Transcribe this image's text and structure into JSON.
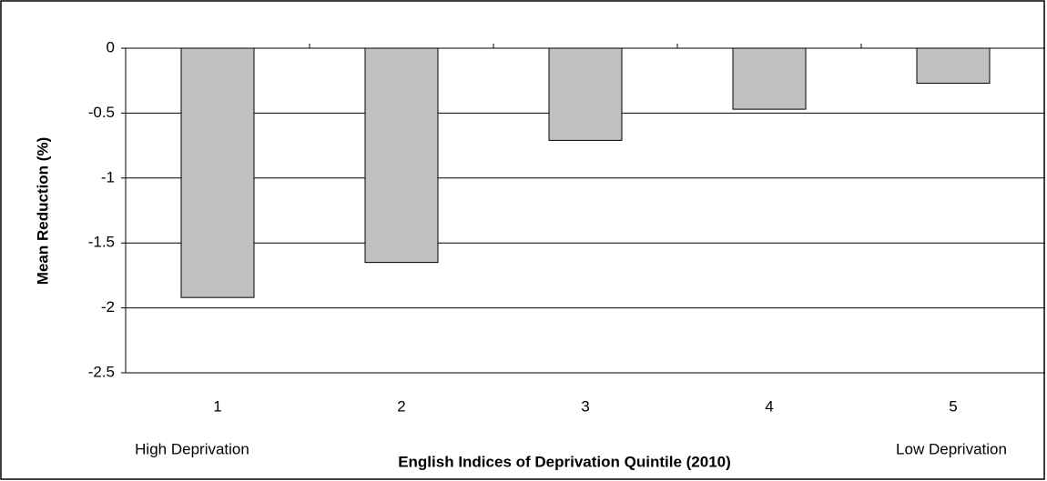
{
  "chart_data": {
    "type": "bar",
    "y_label": "Mean Reduction (%)",
    "x_label": "English Indices of Deprivation Quintile (2010)",
    "annotations": [
      "High Deprivation",
      "Low Deprivation"
    ],
    "categories": [
      "1",
      "2",
      "3",
      "4",
      "5"
    ],
    "values": [
      -1.92,
      -1.65,
      -0.71,
      -0.47,
      -0.27
    ],
    "color": "#c0c0c0",
    "ylim": [
      -2.5,
      0
    ],
    "yticks": [
      0,
      -0.5,
      -1,
      -1.5,
      -2,
      -2.5
    ],
    "grid": true
  }
}
